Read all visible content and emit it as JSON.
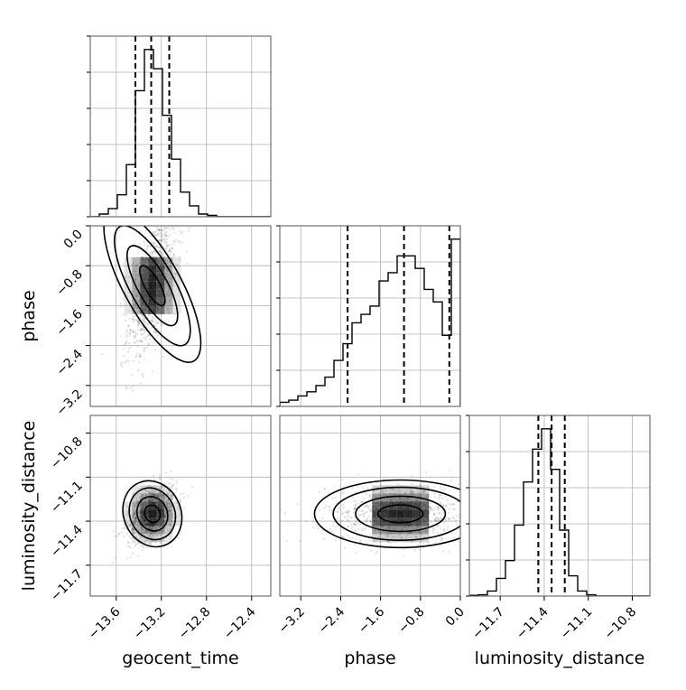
{
  "chart_data": {
    "type": "corner",
    "parameters": [
      "geocent_time",
      "phase",
      "luminosity_distance"
    ],
    "ranges": {
      "geocent_time": [
        -13.83,
        -12.23
      ],
      "phase": [
        -3.62,
        0.0
      ],
      "luminosity_distance": [
        -11.91,
        -10.68
      ]
    },
    "ticks": {
      "geocent_time": [
        "−13.6",
        "−13.2",
        "−12.8",
        "−12.4"
      ],
      "phase": [
        "−3.2",
        "−2.4",
        "−1.6",
        "−0.8",
        "0.0"
      ],
      "luminosity_distance": [
        "−11.7",
        "−11.4",
        "−11.1",
        "−10.8"
      ]
    },
    "quantiles": {
      "geocent_time": [
        -13.43,
        -13.29,
        -13.13
      ],
      "phase": [
        -2.26,
        -1.13,
        -0.22
      ],
      "luminosity_distance": [
        -11.44,
        -11.35,
        -11.26
      ]
    },
    "histograms": {
      "geocent_time": [
        0,
        1,
        3,
        8,
        19,
        46,
        61,
        54,
        37,
        21,
        9,
        4,
        1,
        0.5,
        0,
        0,
        0,
        0,
        0,
        0
      ],
      "phase": [
        2,
        3,
        5,
        7,
        10,
        14,
        22,
        30,
        40,
        44,
        48,
        60,
        64,
        72,
        72,
        66,
        56,
        50,
        34,
        80
      ],
      "luminosity_distance": [
        0.3,
        0.5,
        2,
        7,
        14,
        28,
        45,
        58,
        66,
        50,
        26,
        8,
        2,
        0.5,
        0,
        0,
        0,
        0,
        0,
        0
      ]
    },
    "means": {
      "geocent_time": -13.28,
      "phase": -1.2,
      "luminosity_distance": -11.35
    },
    "spreads": {
      "geocent_time": 0.11,
      "phase": 0.75,
      "luminosity_distance": 0.1
    },
    "grid": true,
    "colors": {
      "line": "#000000",
      "grid": "#b0b0b0",
      "density": "#000000"
    }
  }
}
